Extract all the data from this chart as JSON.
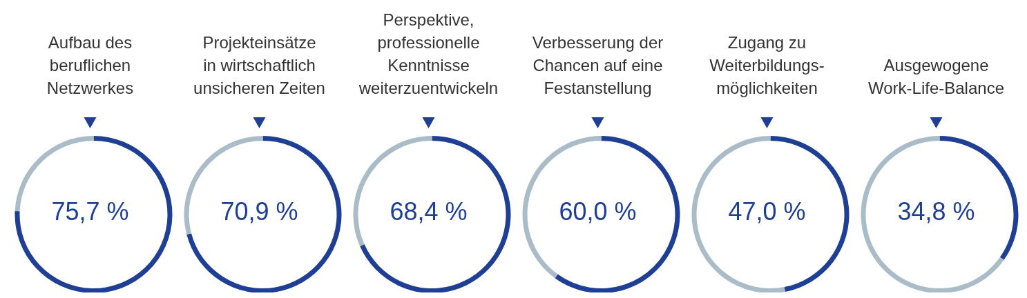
{
  "chart_data": [
    {
      "type": "donut",
      "title": "Aufbau des\nberuflichen\nNetzwerkes",
      "categories": [
        null,
        null
      ],
      "values": [
        75.7,
        24.3
      ],
      "colors": [
        "#1f3f95",
        "#a9bcc8"
      ],
      "annotations": [
        "75,7 %"
      ],
      "legend": false
    },
    {
      "type": "donut",
      "title": "Projekteinsätze\nin wirtschaftlich\nunsicheren Zeiten",
      "categories": [
        null,
        null
      ],
      "values": [
        70.9,
        29.1
      ],
      "colors": [
        "#1f3f95",
        "#a9bcc8"
      ],
      "annotations": [
        "70,9 %"
      ],
      "legend": false
    },
    {
      "type": "donut",
      "title": "Perspektive,\nprofessionelle\nKenntnisse\nweiterzuentwickeln",
      "categories": [
        null,
        null
      ],
      "values": [
        68.4,
        31.6
      ],
      "colors": [
        "#1f3f95",
        "#a9bcc8"
      ],
      "annotations": [
        "68,4 %"
      ],
      "legend": false
    },
    {
      "type": "donut",
      "title": "Verbesserung der\nChancen auf eine\nFestanstellung",
      "categories": [
        null,
        null
      ],
      "values": [
        60.0,
        40.0
      ],
      "colors": [
        "#1f3f95",
        "#a9bcc8"
      ],
      "annotations": [
        "60,0 %"
      ],
      "legend": false
    },
    {
      "type": "donut",
      "title": "Zugang zu\nWeiterbildungs-\nmöglichkeiten",
      "categories": [
        null,
        null
      ],
      "values": [
        47.0,
        53.0
      ],
      "colors": [
        "#1f3f95",
        "#a9bcc8"
      ],
      "annotations": [
        "47,0 %"
      ],
      "legend": false
    },
    {
      "type": "donut",
      "title": "Ausgewogene\nWork-Life-Balance",
      "categories": [
        null,
        null
      ],
      "values": [
        34.8,
        65.2
      ],
      "colors": [
        "#1f3f95",
        "#a9bcc8"
      ],
      "annotations": [
        "34,8 %"
      ],
      "legend": false
    }
  ]
}
